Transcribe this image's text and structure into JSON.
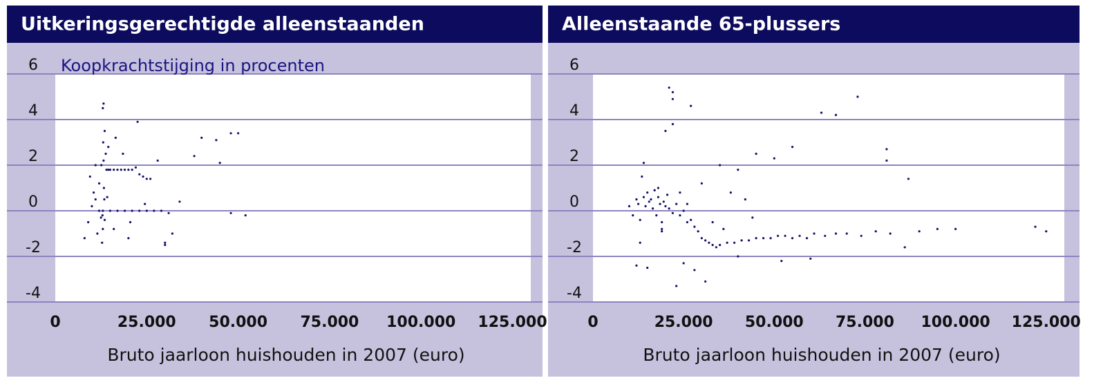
{
  "chart_data": [
    {
      "type": "scatter",
      "title": "Uitkeringsgerechtigde alleenstaanden",
      "annotation": "Koopkrachtstijging in procenten",
      "x_label": "Bruto jaarloon huishouden in 2007 (euro)",
      "color": "#14106a",
      "grid": true,
      "xlim": [
        0,
        130000
      ],
      "ylim": [
        -4,
        6
      ],
      "xticks": [
        0,
        {
          "value": 25000,
          "label": "25.000"
        },
        {
          "value": 50000,
          "label": "50.000"
        },
        {
          "value": 75000,
          "label": "75.000"
        },
        {
          "value": 100000,
          "label": "100.000"
        },
        {
          "value": 125000,
          "label": "125.000"
        }
      ],
      "yticks": [
        -4,
        -2,
        0,
        2,
        4,
        6
      ],
      "x": [
        8000,
        9000,
        10000,
        11000,
        12000,
        12500,
        13000,
        13200,
        13500,
        13800,
        14000,
        12800,
        13000,
        13300,
        12600,
        13100,
        13400,
        13000,
        12900,
        13200,
        14500,
        15000,
        16000,
        17000,
        18000,
        19000,
        20000,
        21000,
        22000,
        23000,
        24000,
        25000,
        26000,
        15000,
        17000,
        19000,
        21000,
        23000,
        25000,
        27000,
        29000,
        31000,
        9500,
        10500,
        11500,
        14500,
        16500,
        18500,
        20500,
        22500,
        24500,
        28000,
        30000,
        32000,
        34000,
        38000,
        40000,
        44000,
        45000,
        48000,
        50000,
        52000,
        48000,
        30000,
        20000,
        16000,
        12000,
        13500,
        14200,
        11000
      ],
      "values": [
        -1.2,
        -0.5,
        0.2,
        0.5,
        0,
        -0.3,
        4.5,
        4.7,
        3.5,
        2.5,
        1.8,
        -1.4,
        -0.8,
        1,
        2,
        3,
        0.5,
        0,
        -0.2,
        2.2,
        1.8,
        1.8,
        1.8,
        1.8,
        1.8,
        1.8,
        1.8,
        1.8,
        1.9,
        1.6,
        1.5,
        1.4,
        1.4,
        0,
        0,
        0,
        0,
        0,
        0,
        0,
        0,
        -0.1,
        1.5,
        0.8,
        -1,
        2.8,
        3.2,
        2.5,
        -0.5,
        3.9,
        0.3,
        2.2,
        -1.5,
        -1,
        0.4,
        2.4,
        3.2,
        3.1,
        2.1,
        3.4,
        3.4,
        -0.2,
        -0.1,
        -1.4,
        -1.2,
        -0.8,
        1.2,
        -0.4,
        0.6,
        2.0
      ]
    },
    {
      "type": "scatter",
      "title": "Alleenstaande 65-plussers",
      "x_label": "Bruto jaarloon huishouden in 2007 (euro)",
      "color": "#14106a",
      "grid": true,
      "xlim": [
        0,
        130000
      ],
      "ylim": [
        -4,
        6
      ],
      "xticks": [
        0,
        {
          "value": 25000,
          "label": "25.000"
        },
        {
          "value": 50000,
          "label": "50.000"
        },
        {
          "value": 75000,
          "label": "75.000"
        },
        {
          "value": 100000,
          "label": "100.000"
        },
        {
          "value": 125000,
          "label": "125.000"
        }
      ],
      "yticks": [
        -4,
        -2,
        0,
        2,
        4,
        6
      ],
      "x": [
        10000,
        11000,
        12000,
        12500,
        13000,
        13500,
        14000,
        14500,
        15000,
        15500,
        16000,
        16500,
        17000,
        17500,
        18000,
        18500,
        19000,
        19500,
        20000,
        20500,
        21000,
        22000,
        23000,
        24000,
        25000,
        26000,
        27000,
        28000,
        29000,
        30000,
        31000,
        32000,
        33000,
        34000,
        35000,
        37000,
        39000,
        41000,
        43000,
        45000,
        47000,
        49000,
        51000,
        53000,
        55000,
        57000,
        59000,
        61000,
        64000,
        67000,
        70000,
        74000,
        78000,
        82000,
        86000,
        90000,
        95000,
        100000,
        122000,
        125000,
        21000,
        22000,
        22000,
        27000,
        73000,
        63000,
        67000,
        81000,
        81000,
        87000,
        14000,
        22000,
        20000,
        23000,
        31000,
        15000,
        12000,
        40000,
        45000,
        50000,
        55000,
        35000,
        30000,
        38000,
        42000,
        26000,
        18000,
        19000,
        17000,
        24000,
        33000,
        28000,
        36000,
        44000,
        52000,
        60000,
        40000,
        25000,
        19000,
        13000
      ],
      "values": [
        0.2,
        -0.2,
        0.5,
        0.3,
        -0.4,
        1.5,
        0.6,
        0.2,
        0.8,
        0.4,
        0.5,
        0.1,
        0.9,
        -0.2,
        0.6,
        0.3,
        -0.8,
        0.4,
        0.2,
        0.7,
        0.1,
        -0.1,
        0.3,
        -0.2,
        0,
        -0.5,
        -0.4,
        -0.7,
        -0.9,
        -1.2,
        -1.3,
        -1.4,
        -1.5,
        -1.6,
        -1.5,
        -1.4,
        -1.4,
        -1.3,
        -1.3,
        -1.2,
        -1.2,
        -1.2,
        -1.1,
        -1.1,
        -1.2,
        -1.1,
        -1.2,
        -1,
        -1.1,
        -1,
        -1,
        -1.1,
        -0.9,
        -1,
        -1.6,
        -0.9,
        -0.8,
        -0.8,
        -0.7,
        -0.9,
        5.4,
        5.2,
        4.9,
        4.6,
        5,
        4.3,
        4.2,
        2.7,
        2.2,
        1.4,
        2.1,
        3.8,
        3.5,
        -3.3,
        -3.1,
        -2.5,
        -2.4,
        1.8,
        2.5,
        2.3,
        2.8,
        2,
        1.2,
        0.8,
        0.5,
        0.3,
        1,
        -0.5,
        0.9,
        0.8,
        -0.5,
        -2.6,
        -0.8,
        -0.3,
        -2.2,
        -2.1,
        -2,
        -2.3,
        -0.9,
        -1.4
      ]
    }
  ]
}
